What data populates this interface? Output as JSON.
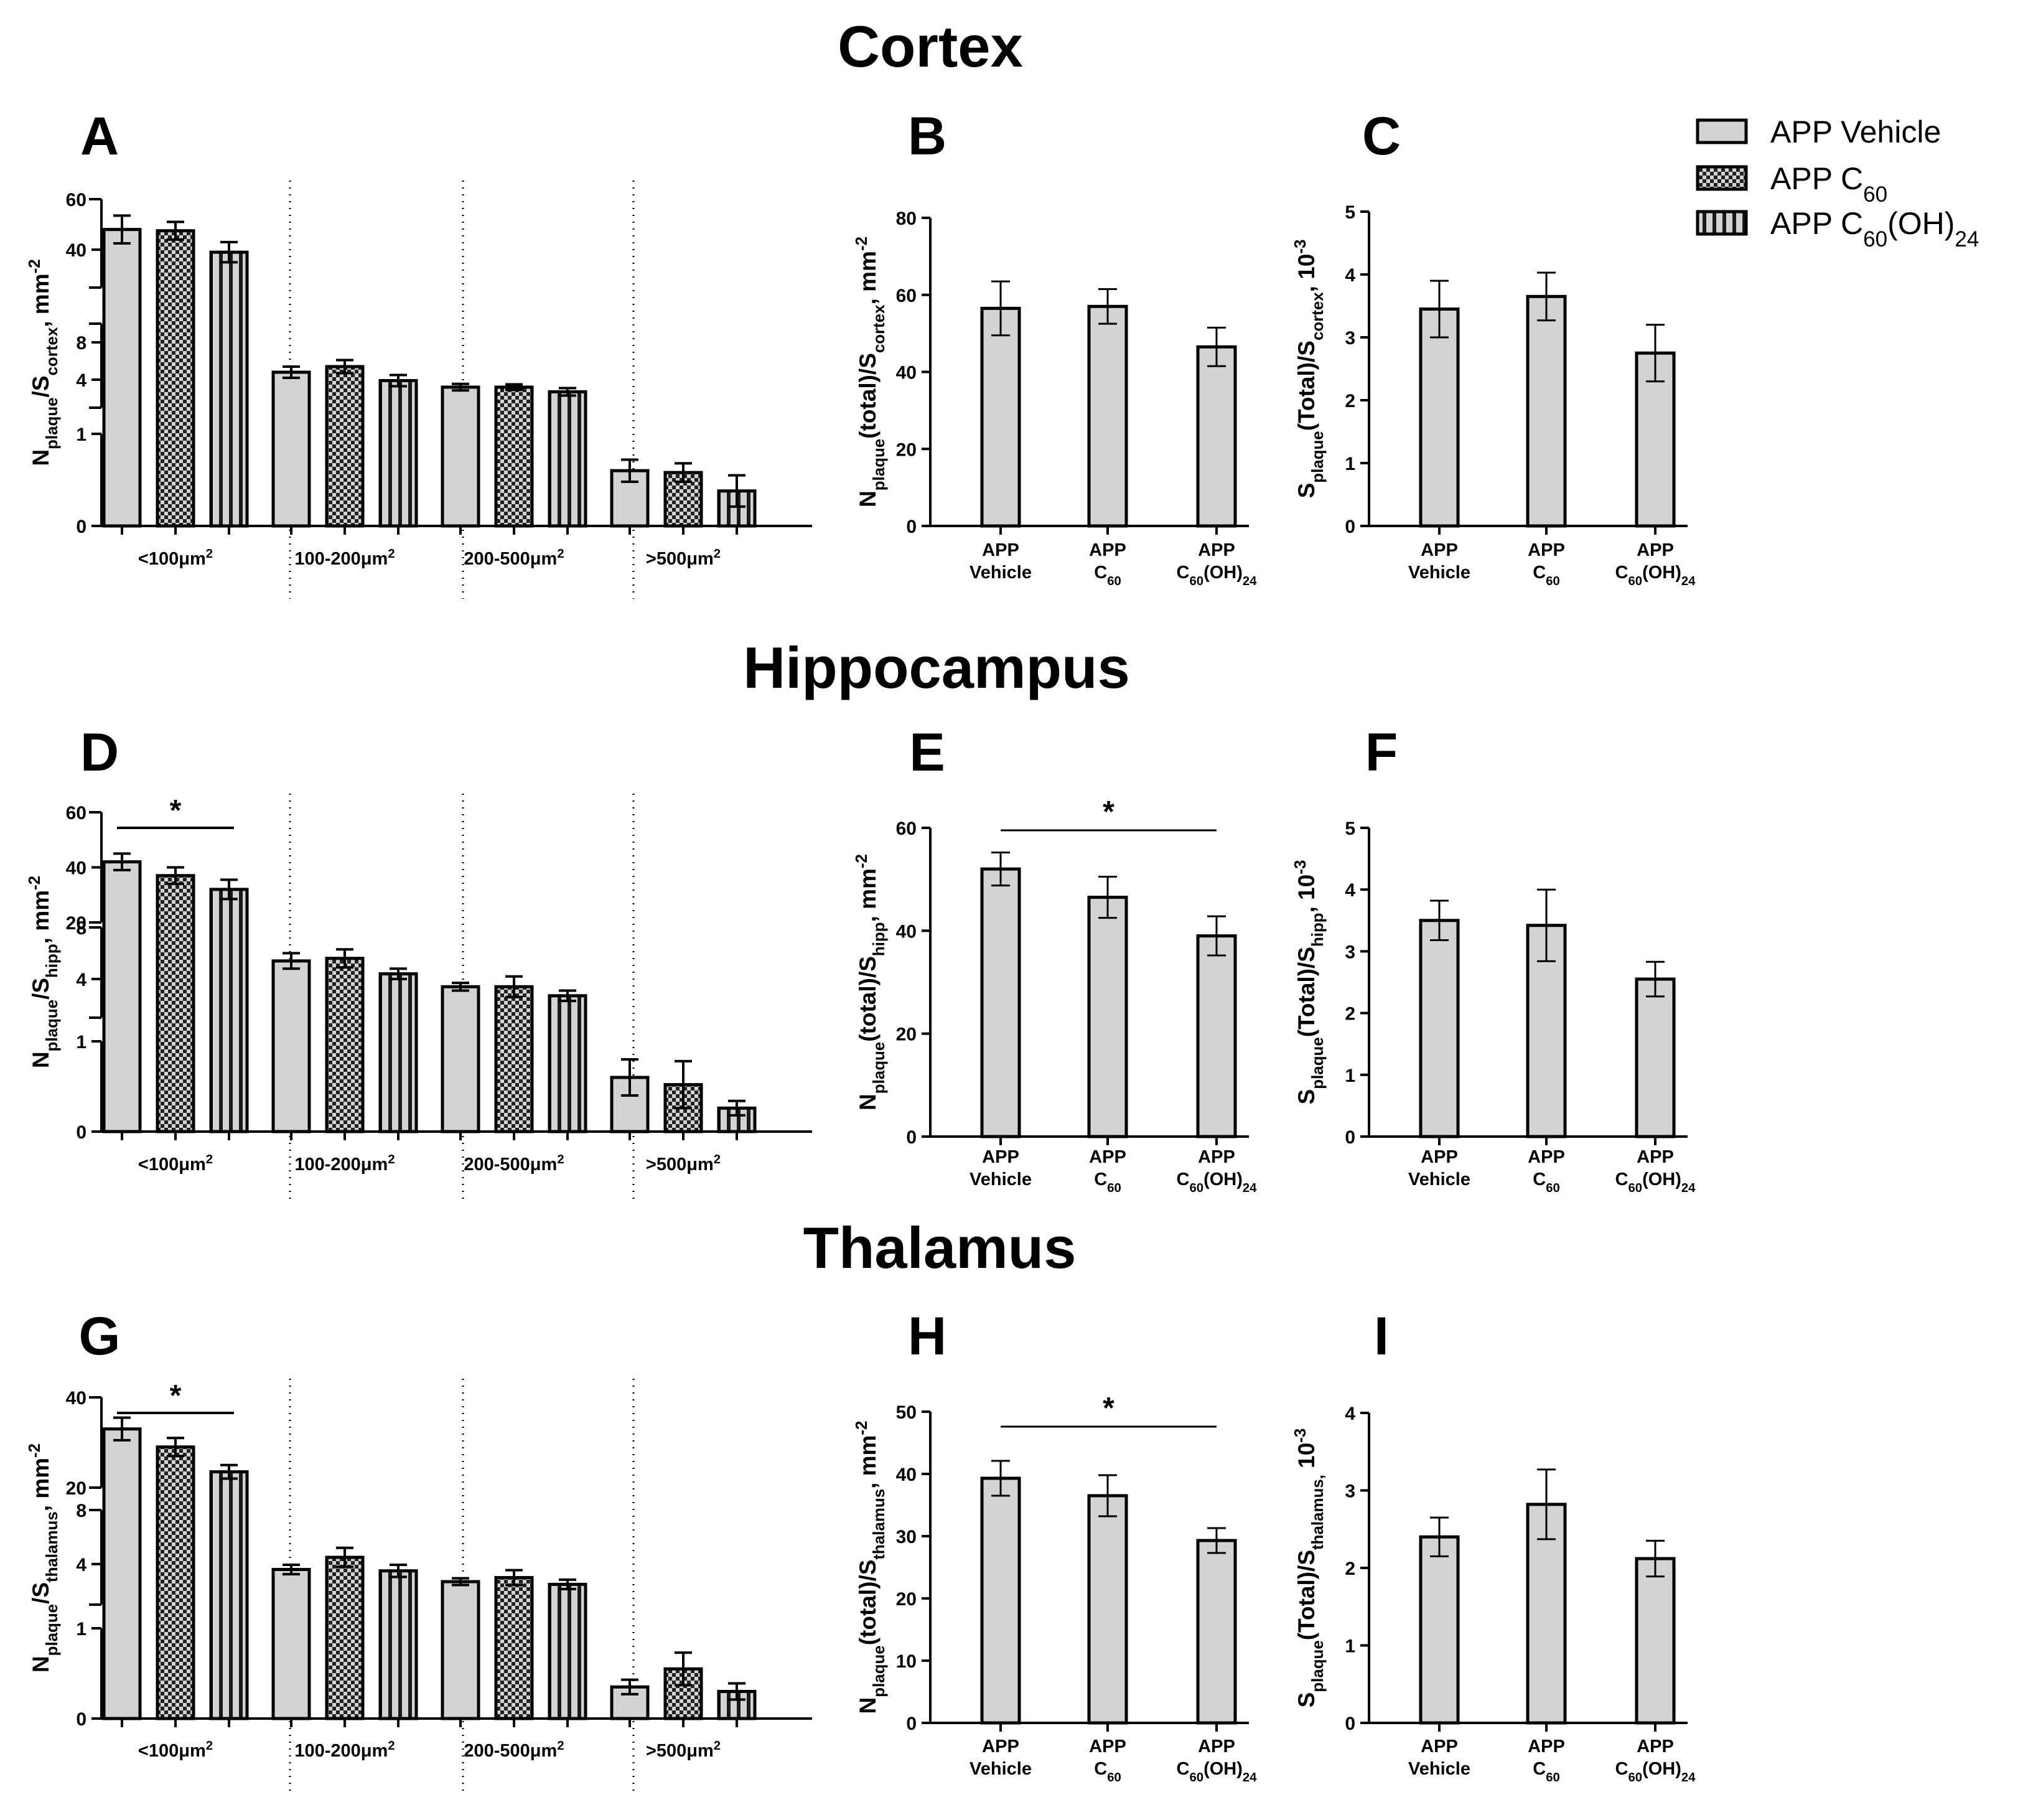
{
  "colors": {
    "bar_fill": "#d3d3d3",
    "stroke": "#000000",
    "background": "#ffffff"
  },
  "legend": [
    {
      "key": "vehicle",
      "html": "APP Vehicle",
      "pattern": "solid"
    },
    {
      "key": "c60",
      "html": "APP C<tspan baseline-shift=\"sub\" font-size=\"70%\">60</tspan>",
      "pattern": "checker"
    },
    {
      "key": "c60oh",
      "html": "APP C<tspan baseline-shift=\"sub\" font-size=\"70%\">60</tspan>(OH)<tspan baseline-shift=\"sub\" font-size=\"70%\">24</tspan>",
      "pattern": "stripes"
    }
  ],
  "sections": [
    "Cortex",
    "Hippocampus",
    "Thalamus"
  ],
  "chart_data": [
    {
      "panel": "A",
      "region": "Cortex",
      "type": "bar",
      "subtype": "grouped-broken-axis",
      "ylabel_html": "N<tspan baseline-shift=\"sub\" font-size=\"70%\">plaque</tspan>/S<tspan baseline-shift=\"sub\" font-size=\"70%\">cortex</tspan>, mm<tspan baseline-shift=\"super\" font-size=\"70%\">-2</tspan>",
      "categories_html": [
        "&lt;100μm<tspan baseline-shift=\"super\" font-size=\"70%\">2</tspan>",
        "100-200μm<tspan baseline-shift=\"super\" font-size=\"70%\">2</tspan>",
        "200-500μm<tspan baseline-shift=\"super\" font-size=\"70%\">2</tspan>",
        "&gt;500μm<tspan baseline-shift=\"super\" font-size=\"70%\">2</tspan>"
      ],
      "axis_segments": [
        {
          "range": [
            0,
            1
          ],
          "ticks": [
            0,
            1
          ]
        },
        {
          "range": [
            1,
            10
          ],
          "ticks": [
            4,
            8
          ]
        },
        {
          "range": [
            25,
            60
          ],
          "ticks": [
            40,
            60
          ]
        }
      ],
      "series": [
        {
          "name": "APP Vehicle",
          "values": [
            48,
            4.8,
            3.2,
            0.6
          ],
          "errors": [
            5.5,
            0.6,
            0.35,
            0.12
          ]
        },
        {
          "name": "APP C60",
          "values": [
            47.5,
            5.4,
            3.2,
            0.58
          ],
          "errors": [
            3.5,
            0.7,
            0.3,
            0.1
          ]
        },
        {
          "name": "APP C60(OH)24",
          "values": [
            39,
            3.9,
            2.7,
            0.38
          ],
          "errors": [
            4.0,
            0.6,
            0.4,
            0.17
          ]
        }
      ],
      "significance": []
    },
    {
      "panel": "B",
      "region": "Cortex",
      "type": "bar",
      "ylabel_html": "N<tspan baseline-shift=\"sub\" font-size=\"70%\">plaque</tspan>(total)/S<tspan baseline-shift=\"sub\" font-size=\"70%\">cortex</tspan>, mm<tspan baseline-shift=\"super\" font-size=\"70%\">-2</tspan>",
      "ylim": [
        0,
        80
      ],
      "ticks": [
        0,
        20,
        40,
        60,
        80
      ],
      "categories_html": [
        [
          "APP",
          "Vehicle"
        ],
        [
          "APP",
          "C<tspan baseline-shift=\"sub\" font-size=\"70%\">60</tspan>"
        ],
        [
          "APP",
          "C<tspan baseline-shift=\"sub\" font-size=\"70%\">60</tspan>(OH)<tspan baseline-shift=\"sub\" font-size=\"70%\">24</tspan>"
        ]
      ],
      "values": [
        56.5,
        57,
        46.5
      ],
      "errors": [
        7,
        4.5,
        5
      ],
      "significance": []
    },
    {
      "panel": "C",
      "region": "Cortex",
      "type": "bar",
      "ylabel_html": "S<tspan baseline-shift=\"sub\" font-size=\"70%\">plaque</tspan>(Total)/S<tspan baseline-shift=\"sub\" font-size=\"70%\">cortex</tspan>, 10<tspan baseline-shift=\"super\" font-size=\"70%\">-3</tspan>",
      "ylim": [
        0,
        5
      ],
      "ticks": [
        0,
        1,
        2,
        3,
        4,
        5
      ],
      "categories_html": [
        [
          "APP",
          "Vehicle"
        ],
        [
          "APP",
          "C<tspan baseline-shift=\"sub\" font-size=\"70%\">60</tspan>"
        ],
        [
          "APP",
          "C<tspan baseline-shift=\"sub\" font-size=\"70%\">60</tspan>(OH)<tspan baseline-shift=\"sub\" font-size=\"70%\">24</tspan>"
        ]
      ],
      "values": [
        3.45,
        3.65,
        2.75
      ],
      "errors": [
        0.45,
        0.38,
        0.45
      ],
      "significance": []
    },
    {
      "panel": "D",
      "region": "Hippocampus",
      "type": "bar",
      "subtype": "grouped-broken-axis",
      "ylabel_html": "N<tspan baseline-shift=\"sub\" font-size=\"70%\">plaque</tspan>/S<tspan baseline-shift=\"sub\" font-size=\"70%\">hipp</tspan>, mm<tspan baseline-shift=\"super\" font-size=\"70%\">-2</tspan>",
      "categories_html": [
        "&lt;100μm<tspan baseline-shift=\"super\" font-size=\"70%\">2</tspan>",
        "100-200μm<tspan baseline-shift=\"super\" font-size=\"70%\">2</tspan>",
        "200-500μm<tspan baseline-shift=\"super\" font-size=\"70%\">2</tspan>",
        "&gt;500μm<tspan baseline-shift=\"super\" font-size=\"70%\">2</tspan>"
      ],
      "axis_segments": [
        {
          "range": [
            0,
            1
          ],
          "ticks": [
            0,
            1
          ]
        },
        {
          "range": [
            1,
            8
          ],
          "ticks": [
            4,
            8
          ]
        },
        {
          "range": [
            20,
            60
          ],
          "ticks": [
            20,
            40,
            60
          ]
        }
      ],
      "series": [
        {
          "name": "APP Vehicle",
          "values": [
            42,
            5.4,
            3.4,
            0.6
          ],
          "errors": [
            3,
            0.6,
            0.3,
            0.2
          ]
        },
        {
          "name": "APP C60",
          "values": [
            37,
            5.6,
            3.4,
            0.52
          ],
          "errors": [
            3,
            0.7,
            0.8,
            0.26
          ]
        },
        {
          "name": "APP C60(OH)24",
          "values": [
            32,
            4.4,
            2.7,
            0.26
          ],
          "errors": [
            3.5,
            0.4,
            0.4,
            0.08
          ]
        }
      ],
      "significance": [
        {
          "from": 0,
          "to": 2,
          "group": 0,
          "label": "*"
        }
      ]
    },
    {
      "panel": "E",
      "region": "Hippocampus",
      "type": "bar",
      "ylabel_html": "N<tspan baseline-shift=\"sub\" font-size=\"70%\">plaque</tspan>(total)/S<tspan baseline-shift=\"sub\" font-size=\"70%\">hipp</tspan>, mm<tspan baseline-shift=\"super\" font-size=\"70%\">-2</tspan>",
      "ylim": [
        0,
        60
      ],
      "ticks": [
        0,
        20,
        40,
        60
      ],
      "categories_html": [
        [
          "APP",
          "Vehicle"
        ],
        [
          "APP",
          "C<tspan baseline-shift=\"sub\" font-size=\"70%\">60</tspan>"
        ],
        [
          "APP",
          "C<tspan baseline-shift=\"sub\" font-size=\"70%\">60</tspan>(OH)<tspan baseline-shift=\"sub\" font-size=\"70%\">24</tspan>"
        ]
      ],
      "values": [
        52,
        46.5,
        39
      ],
      "errors": [
        3.2,
        4,
        3.8
      ],
      "significance": [
        {
          "from": 0,
          "to": 2,
          "label": "*"
        }
      ]
    },
    {
      "panel": "F",
      "region": "Hippocampus",
      "type": "bar",
      "ylabel_html": "S<tspan baseline-shift=\"sub\" font-size=\"70%\">plaque</tspan>(Total)/S<tspan baseline-shift=\"sub\" font-size=\"70%\">hipp</tspan>, 10<tspan baseline-shift=\"super\" font-size=\"70%\">-3</tspan>",
      "ylim": [
        0,
        5
      ],
      "ticks": [
        0,
        1,
        2,
        3,
        4,
        5
      ],
      "categories_html": [
        [
          "APP",
          "Vehicle"
        ],
        [
          "APP",
          "C<tspan baseline-shift=\"sub\" font-size=\"70%\">60</tspan>"
        ],
        [
          "APP",
          "C<tspan baseline-shift=\"sub\" font-size=\"70%\">60</tspan>(OH)<tspan baseline-shift=\"sub\" font-size=\"70%\">24</tspan>"
        ]
      ],
      "values": [
        3.5,
        3.42,
        2.55
      ],
      "errors": [
        0.32,
        0.58,
        0.28
      ],
      "significance": []
    },
    {
      "panel": "G",
      "region": "Thalamus",
      "type": "bar",
      "subtype": "grouped-broken-axis",
      "ylabel_html": "N<tspan baseline-shift=\"sub\" font-size=\"70%\">plaque</tspan>/S<tspan baseline-shift=\"sub\" font-size=\"70%\">thalamus</tspan>, mm<tspan baseline-shift=\"super\" font-size=\"70%\">-2</tspan>",
      "categories_html": [
        "&lt;100μm<tspan baseline-shift=\"super\" font-size=\"70%\">2</tspan>",
        "100-200μm<tspan baseline-shift=\"super\" font-size=\"70%\">2</tspan>",
        "200-500μm<tspan baseline-shift=\"super\" font-size=\"70%\">2</tspan>",
        "&gt;500μm<tspan baseline-shift=\"super\" font-size=\"70%\">2</tspan>"
      ],
      "axis_segments": [
        {
          "range": [
            0,
            1
          ],
          "ticks": [
            0,
            1
          ]
        },
        {
          "range": [
            1,
            8
          ],
          "ticks": [
            4,
            8
          ]
        },
        {
          "range": [
            20,
            40
          ],
          "ticks": [
            20,
            40
          ]
        }
      ],
      "series": [
        {
          "name": "APP Vehicle",
          "values": [
            33,
            3.6,
            2.7,
            0.35
          ],
          "errors": [
            2.5,
            0.35,
            0.25,
            0.08
          ]
        },
        {
          "name": "APP C60",
          "values": [
            29,
            4.5,
            3.0,
            0.55
          ],
          "errors": [
            2,
            0.7,
            0.55,
            0.18
          ]
        },
        {
          "name": "APP C60(OH)24",
          "values": [
            23.5,
            3.5,
            2.5,
            0.3
          ],
          "errors": [
            1.5,
            0.45,
            0.35,
            0.09
          ]
        }
      ],
      "significance": [
        {
          "from": 0,
          "to": 2,
          "group": 0,
          "label": "*"
        }
      ]
    },
    {
      "panel": "H",
      "region": "Thalamus",
      "type": "bar",
      "ylabel_html": "N<tspan baseline-shift=\"sub\" font-size=\"70%\">plaque</tspan>(total)/S<tspan baseline-shift=\"sub\" font-size=\"70%\">thalamus</tspan>, mm<tspan baseline-shift=\"super\" font-size=\"70%\">-2</tspan>",
      "ylim": [
        0,
        50
      ],
      "ticks": [
        0,
        10,
        20,
        30,
        40,
        50
      ],
      "categories_html": [
        [
          "APP",
          "Vehicle"
        ],
        [
          "APP",
          "C<tspan baseline-shift=\"sub\" font-size=\"70%\">60</tspan>"
        ],
        [
          "APP",
          "C<tspan baseline-shift=\"sub\" font-size=\"70%\">60</tspan>(OH)<tspan baseline-shift=\"sub\" font-size=\"70%\">24</tspan>"
        ]
      ],
      "values": [
        39.3,
        36.5,
        29.3
      ],
      "errors": [
        2.8,
        3.3,
        2
      ],
      "significance": [
        {
          "from": 0,
          "to": 2,
          "label": "*"
        }
      ]
    },
    {
      "panel": "I",
      "region": "Thalamus",
      "type": "bar",
      "ylabel_html": "S<tspan baseline-shift=\"sub\" font-size=\"70%\">plaque</tspan>(Total)/S<tspan baseline-shift=\"sub\" font-size=\"70%\">thalamus,</tspan> 10<tspan baseline-shift=\"super\" font-size=\"70%\">-3</tspan>",
      "ylim": [
        0,
        4
      ],
      "ticks": [
        0,
        1,
        2,
        3,
        4
      ],
      "categories_html": [
        [
          "APP",
          "Vehicle"
        ],
        [
          "APP",
          "C<tspan baseline-shift=\"sub\" font-size=\"70%\">60</tspan>"
        ],
        [
          "APP",
          "C<tspan baseline-shift=\"sub\" font-size=\"70%\">60</tspan>(OH)<tspan baseline-shift=\"sub\" font-size=\"70%\">24</tspan>"
        ]
      ],
      "values": [
        2.4,
        2.82,
        2.12
      ],
      "errors": [
        0.25,
        0.45,
        0.23
      ],
      "significance": []
    }
  ]
}
